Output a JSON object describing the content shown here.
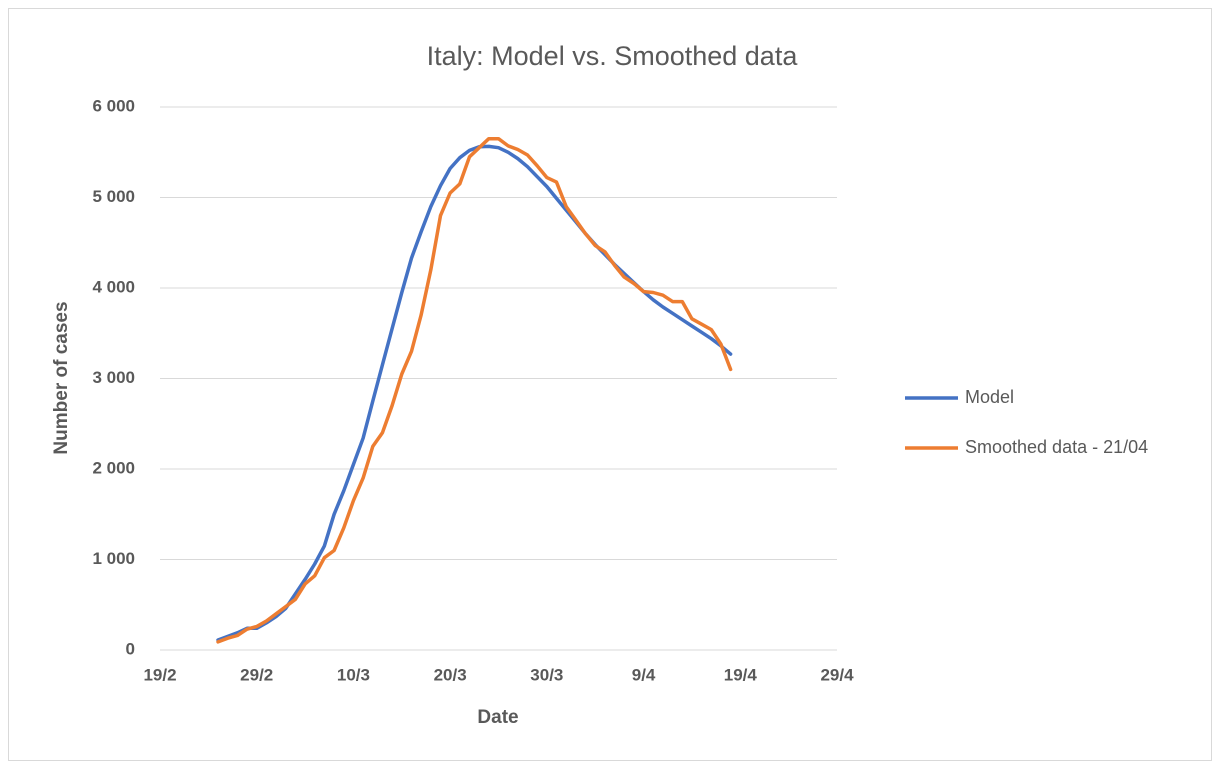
{
  "chart_data": {
    "type": "line",
    "title": "Italy: Model vs. Smoothed data",
    "x_label": "Date",
    "y_label": "Number of cases",
    "x": [
      "25/2",
      "26/2",
      "27/2",
      "28/2",
      "29/2",
      "1/3",
      "2/3",
      "3/3",
      "4/3",
      "5/3",
      "6/3",
      "7/3",
      "8/3",
      "9/3",
      "10/3",
      "11/3",
      "12/3",
      "13/3",
      "14/3",
      "15/3",
      "16/3",
      "17/3",
      "18/3",
      "19/3",
      "20/3",
      "21/3",
      "22/3",
      "23/3",
      "24/3",
      "25/3",
      "26/3",
      "27/3",
      "28/3",
      "29/3",
      "30/3",
      "31/3",
      "1/4",
      "2/4",
      "3/4",
      "4/4",
      "5/4",
      "6/4",
      "7/4",
      "8/4",
      "9/4",
      "10/4",
      "11/4",
      "12/4",
      "13/4",
      "14/4",
      "15/4",
      "16/4",
      "17/4",
      "18/4"
    ],
    "series": [
      {
        "name": "Model",
        "color": "#4472c4",
        "values": [
          110,
          150,
          190,
          240,
          240,
          300,
          370,
          460,
          620,
          780,
          950,
          1150,
          1500,
          1760,
          2050,
          2340,
          2750,
          3150,
          3550,
          3950,
          4330,
          4620,
          4900,
          5130,
          5320,
          5440,
          5520,
          5560,
          5565,
          5550,
          5500,
          5430,
          5340,
          5230,
          5120,
          4990,
          4860,
          4730,
          4600,
          4480,
          4370,
          4260,
          4160,
          4060,
          3960,
          3870,
          3790,
          3720,
          3650,
          3580,
          3510,
          3440,
          3360,
          3270
        ]
      },
      {
        "name": "Smoothed data - 21/04",
        "color": "#ed7d31",
        "values": [
          90,
          130,
          160,
          230,
          260,
          320,
          400,
          480,
          560,
          730,
          820,
          1020,
          1100,
          1350,
          1650,
          1900,
          2250,
          2400,
          2700,
          3050,
          3300,
          3700,
          4200,
          4800,
          5050,
          5150,
          5450,
          5550,
          5650,
          5650,
          5570,
          5530,
          5470,
          5350,
          5220,
          5170,
          4900,
          4750,
          4600,
          4470,
          4400,
          4250,
          4120,
          4050,
          3960,
          3950,
          3920,
          3850,
          3850,
          3660,
          3600,
          3540,
          3380,
          3100
        ]
      }
    ],
    "xlim": [
      "19/2",
      "29/4"
    ],
    "xticks": [
      "19/2",
      "29/2",
      "10/3",
      "20/3",
      "30/3",
      "9/4",
      "19/4",
      "29/4"
    ],
    "ylim": [
      0,
      6000
    ],
    "yticks": [
      0,
      {
        "value": 1000,
        "label": "1 000"
      },
      {
        "value": 2000,
        "label": "2 000"
      },
      {
        "value": 3000,
        "label": "3 000"
      },
      {
        "value": 4000,
        "label": "4 000"
      },
      {
        "value": 5000,
        "label": "5 000"
      },
      {
        "value": 6000,
        "label": "6 000"
      }
    ],
    "grid": true,
    "legend": "right"
  }
}
